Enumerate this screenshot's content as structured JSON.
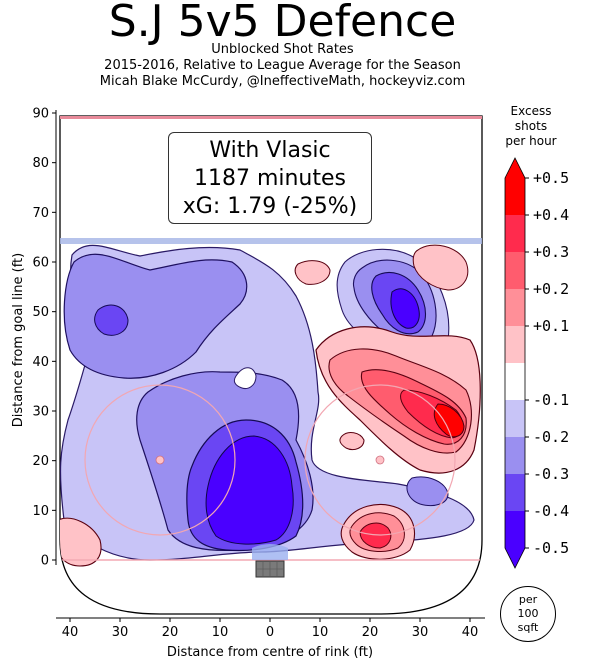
{
  "header": {
    "title": "S.J 5v5 Defence",
    "subtitle1": "Unblocked Shot Rates",
    "subtitle2": "2015-2016, Relative to League Average for the Season",
    "subtitle3": "Micah Blake McCurdy, @IneffectiveMath, hockeyviz.com"
  },
  "annotation": {
    "line1": "With Vlasic",
    "line2": "1187 minutes",
    "line3": "xG: 1.79 (-25%)"
  },
  "colorbar": {
    "title_l1": "Excess",
    "title_l2": "shots",
    "title_l3": "per hour",
    "ticks": [
      "+0.5",
      "+0.4",
      "+0.3",
      "+0.2",
      "+0.1",
      "-0.1",
      "-0.2",
      "-0.3",
      "-0.4",
      "-0.5"
    ],
    "colors": [
      "#ff0000",
      "#ff2b4d",
      "#ff5c6e",
      "#ff8f98",
      "#ffc2c7",
      "#ffffff",
      "#c8c4f7",
      "#9a8ff0",
      "#6a46f3",
      "#4a00ff"
    ]
  },
  "units": {
    "line1": "per",
    "line2": "100",
    "line3": "sqft"
  },
  "chart_data": {
    "type": "heatmap",
    "title": "S.J 5v5 Defence",
    "xlabel": "Distance from centre of rink (ft)",
    "ylabel": "Distance from goal line (ft)",
    "xlim": [
      -42,
      42
    ],
    "ylim": [
      -11,
      90
    ],
    "x_ticks": [
      40,
      30,
      20,
      10,
      0,
      10,
      20,
      30,
      40
    ],
    "y_ticks": [
      0,
      10,
      20,
      30,
      40,
      50,
      60,
      70,
      80,
      90
    ],
    "colorbar_range": [
      -0.5,
      0.5
    ],
    "regions": [
      {
        "label": "net-front deficit",
        "x": -2,
        "y": 18,
        "value": -0.5
      },
      {
        "label": "left point deficit",
        "x": -32,
        "y": 48,
        "value": -0.3
      },
      {
        "label": "right high slot deficit",
        "x": 26,
        "y": 52,
        "value": -0.5
      },
      {
        "label": "right circle excess",
        "x": 34,
        "y": 30,
        "value": 0.5
      },
      {
        "label": "right low excess",
        "x": 21,
        "y": 5,
        "value": 0.5
      },
      {
        "label": "left corner excess",
        "x": -42,
        "y": 3,
        "value": 0.2
      },
      {
        "label": "right boards excess",
        "x": 35,
        "y": 62,
        "value": 0.2
      }
    ]
  }
}
